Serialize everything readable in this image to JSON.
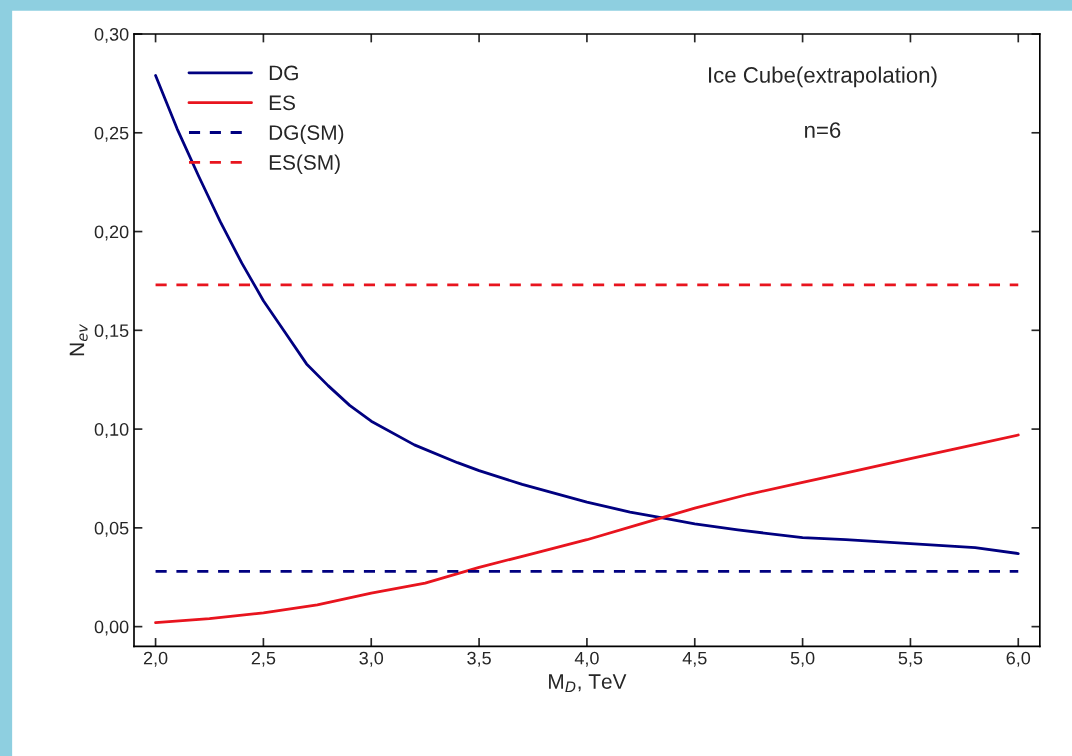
{
  "chart_data": {
    "type": "line",
    "xlabel": "M$_{D}$, TeV",
    "ylabel": "N$_{ev}$",
    "xlim": [
      1.9,
      6.1
    ],
    "ylim": [
      -0.01,
      0.3
    ],
    "xticks": [
      {
        "value": 2.0,
        "label": "2,0"
      },
      {
        "value": 2.5,
        "label": "2,5"
      },
      {
        "value": 3.0,
        "label": "3,0"
      },
      {
        "value": 3.5,
        "label": "3,5"
      },
      {
        "value": 4.0,
        "label": "4,0"
      },
      {
        "value": 4.5,
        "label": "4,5"
      },
      {
        "value": 5.0,
        "label": "5,0"
      },
      {
        "value": 5.5,
        "label": "5,5"
      },
      {
        "value": 6.0,
        "label": "6,0"
      }
    ],
    "yticks": [
      {
        "value": 0.0,
        "label": "0,00"
      },
      {
        "value": 0.05,
        "label": "0,05"
      },
      {
        "value": 0.1,
        "label": "0,10"
      },
      {
        "value": 0.15,
        "label": "0,15"
      },
      {
        "value": 0.2,
        "label": "0,20"
      },
      {
        "value": 0.25,
        "label": "0,25"
      },
      {
        "value": 0.3,
        "label": "0,30"
      }
    ],
    "annotations": [
      "Ice Cube(extrapolation)",
      "n=6"
    ],
    "legend": "top left",
    "grid": false,
    "series": [
      {
        "name": "DG",
        "color": "#000080",
        "line_style": "solid",
        "x": [
          2.0,
          2.1,
          2.2,
          2.3,
          2.4,
          2.5,
          2.6,
          2.7,
          2.8,
          2.9,
          3.0,
          3.2,
          3.4,
          3.5,
          3.7,
          4.0,
          4.2,
          4.35,
          4.5,
          4.7,
          5.0,
          5.2,
          5.5,
          5.8,
          6.0
        ],
        "values": [
          0.279,
          0.252,
          0.228,
          0.205,
          0.184,
          0.165,
          0.149,
          0.133,
          0.122,
          0.112,
          0.104,
          0.092,
          0.083,
          0.079,
          0.072,
          0.063,
          0.058,
          0.055,
          0.052,
          0.049,
          0.045,
          0.044,
          0.042,
          0.04,
          0.037
        ]
      },
      {
        "name": "ES",
        "color": "#e8141e",
        "line_style": "solid",
        "x": [
          2.0,
          2.25,
          2.5,
          2.75,
          3.0,
          3.25,
          3.5,
          3.75,
          4.0,
          4.25,
          4.5,
          4.75,
          5.0,
          5.25,
          5.5,
          5.75,
          6.0
        ],
        "values": [
          0.002,
          0.004,
          0.007,
          0.011,
          0.017,
          0.022,
          0.03,
          0.037,
          0.044,
          0.052,
          0.06,
          0.067,
          0.073,
          0.079,
          0.085,
          0.091,
          0.097
        ]
      },
      {
        "name": "DG(SM)",
        "color": "#000080",
        "line_style": "dashed",
        "x": [
          2.0,
          6.0
        ],
        "values": [
          0.028,
          0.028
        ]
      },
      {
        "name": "ES(SM)",
        "color": "#e8141e",
        "line_style": "dashed",
        "x": [
          2.0,
          6.0
        ],
        "values": [
          0.173,
          0.173
        ]
      }
    ]
  }
}
